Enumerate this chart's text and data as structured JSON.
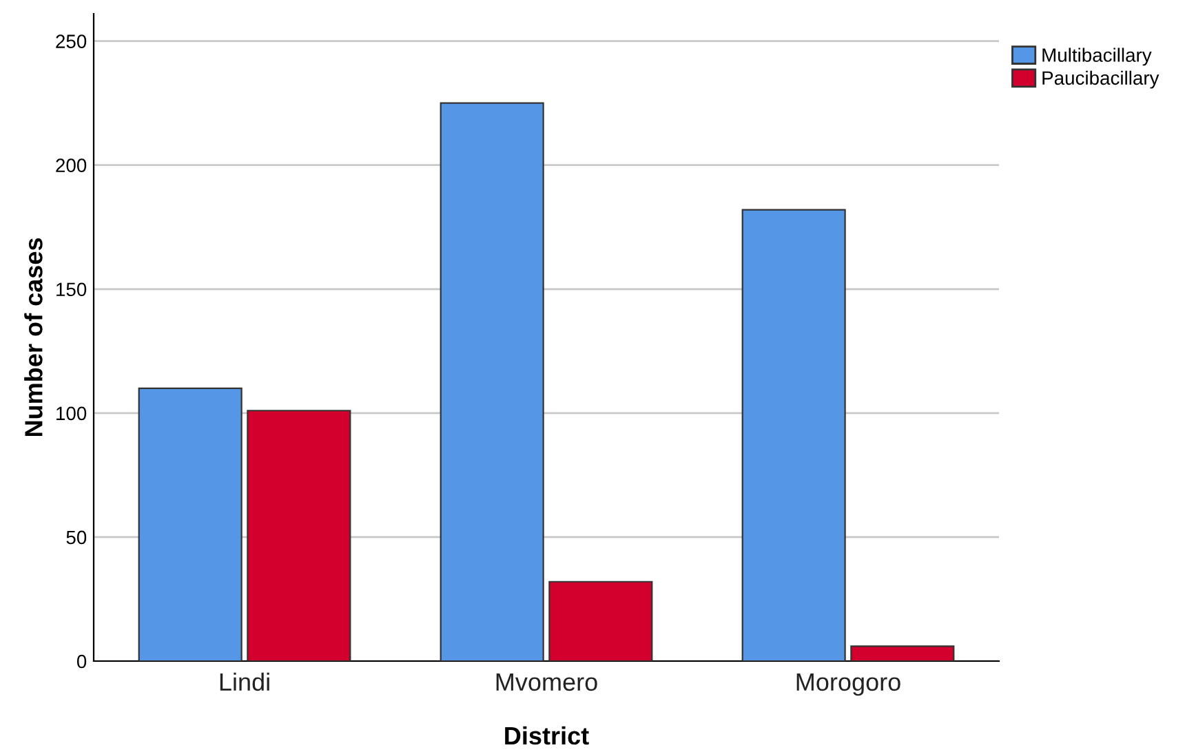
{
  "chart_data": {
    "type": "bar",
    "xlabel": "District",
    "ylabel": "Number of cases",
    "categories": [
      "Lindi",
      "Mvomero",
      "Morogoro"
    ],
    "series": [
      {
        "name": "Multibacillary",
        "color": "#5596e6",
        "values": [
          110,
          225,
          182
        ]
      },
      {
        "name": "Paucibacillary",
        "color": "#d3002d",
        "values": [
          101,
          32,
          6
        ]
      }
    ],
    "ylim": [
      0,
      261
    ],
    "yticks": [
      0,
      50,
      100,
      150,
      200,
      250
    ],
    "grid": "y",
    "legend": "top right"
  }
}
